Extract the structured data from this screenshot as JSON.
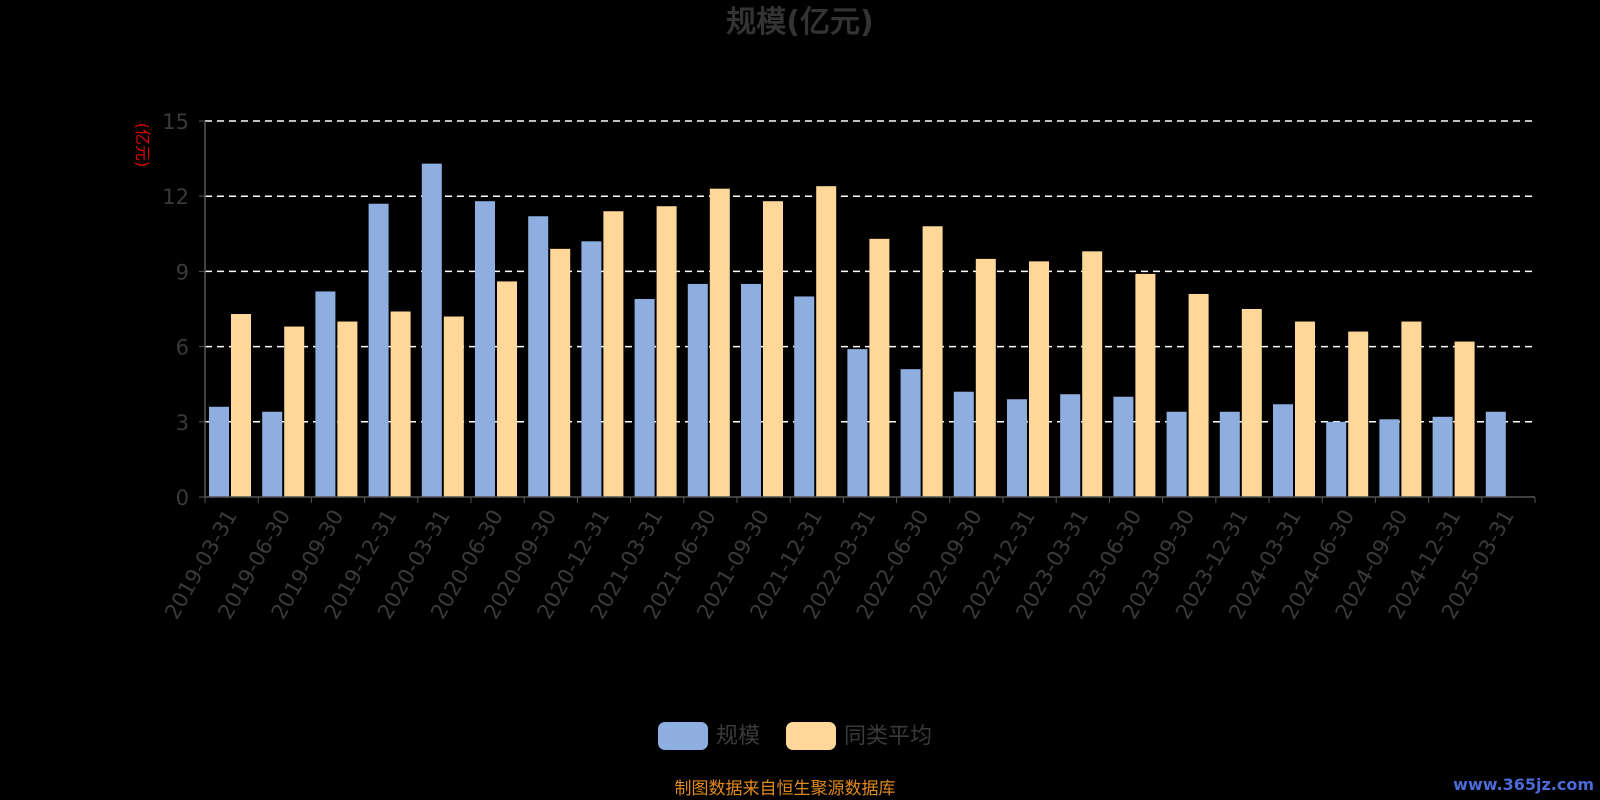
{
  "chart_data": {
    "type": "bar",
    "title": "规模(亿元)",
    "ylabel": "(亿元)",
    "ylim": [
      0,
      15
    ],
    "yticks": [
      0,
      3,
      6,
      9,
      12,
      15
    ],
    "grid": true,
    "legend_position": "bottom-center",
    "categories": [
      "2019-03-31",
      "2019-06-30",
      "2019-09-30",
      "2019-12-31",
      "2020-03-31",
      "2020-06-30",
      "2020-09-30",
      "2020-12-31",
      "2021-03-31",
      "2021-06-30",
      "2021-09-30",
      "2021-12-31",
      "2022-03-31",
      "2022-06-30",
      "2022-09-30",
      "2022-12-31",
      "2023-03-31",
      "2023-06-30",
      "2023-09-30",
      "2023-12-31",
      "2024-03-31",
      "2024-06-30",
      "2024-09-30",
      "2024-12-31",
      "2025-03-31"
    ],
    "series": [
      {
        "name": "规模",
        "color": "#8eaee0",
        "values": [
          3.6,
          3.4,
          8.2,
          11.7,
          13.3,
          11.8,
          11.2,
          10.2,
          7.9,
          8.5,
          8.5,
          8.0,
          5.9,
          5.1,
          4.2,
          3.9,
          4.1,
          4.0,
          3.4,
          3.4,
          3.7,
          3.0,
          3.1,
          3.2,
          3.4
        ]
      },
      {
        "name": "同类平均",
        "color": "#ffd899",
        "values": [
          7.3,
          6.8,
          7.0,
          7.4,
          7.2,
          8.6,
          9.9,
          11.4,
          11.6,
          12.3,
          11.8,
          12.4,
          10.3,
          10.8,
          9.5,
          9.4,
          9.8,
          8.9,
          8.1,
          7.5,
          7.0,
          6.6,
          7.0,
          6.2,
          null
        ]
      }
    ]
  },
  "source_note": "制图数据来自恒生聚源数据库",
  "watermark": "www.365jz.com"
}
